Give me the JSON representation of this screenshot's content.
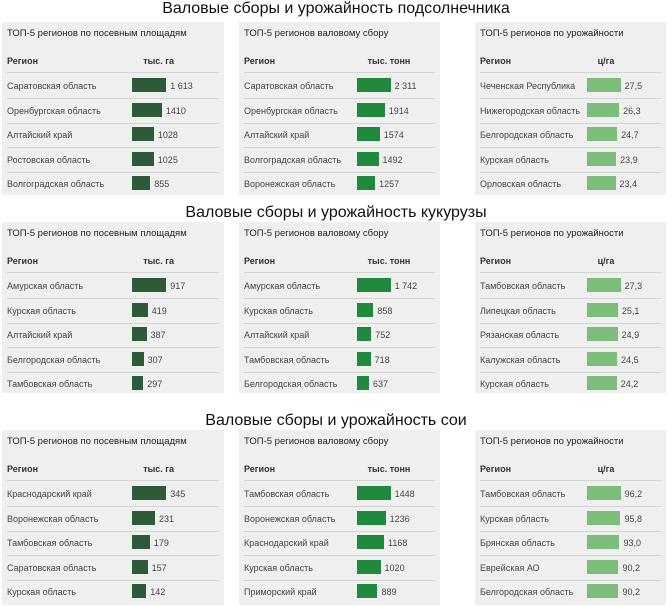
{
  "sections": [
    {
      "title": "Валовые сборы и урожайность подсолнечника",
      "tables": [
        {
          "title": "ТОП-5 регионов по посевным площадям",
          "header": [
            "Регион",
            "тыс. га"
          ],
          "rows": [
            {
              "region": "Саратовская область",
              "value": {
                "value": 1613,
                "label": "1 613"
              }
            },
            {
              "region": "Оренбургская область",
              "value": 1410
            },
            {
              "region": "Алтайский край",
              "value": 1028
            },
            {
              "region": "Ростовская область",
              "value": 1025
            },
            {
              "region": "Волгоградская область",
              "value": 855
            }
          ]
        },
        {
          "title": "ТОП-5 регионов валовому сбору",
          "header": [
            "Регион",
            "тыс. тонн"
          ],
          "rows": [
            {
              "region": "Саратовская область",
              "value": {
                "value": 2311,
                "label": "2 311"
              }
            },
            {
              "region": "Оренбургская область",
              "value": 1914
            },
            {
              "region": "Алтайский край",
              "value": 1574
            },
            {
              "region": "Волгоградская область",
              "value": 1492
            },
            {
              "region": "Воронежская область",
              "value": 1257
            }
          ]
        },
        {
          "title": "ТОП-5 регионов по урожайности",
          "header": [
            "Регион",
            "ц/га"
          ],
          "rows": [
            {
              "region": "Чеченская Республика",
              "value": {
                "value": 27.5,
                "label": "27,5"
              }
            },
            {
              "region": "Нижегородская область",
              "value": {
                "value": 26.3,
                "label": "26,3"
              }
            },
            {
              "region": "Белгородская область",
              "value": {
                "value": 24.7,
                "label": "24,7"
              }
            },
            {
              "region": "Курская область",
              "value": {
                "value": 23.9,
                "label": "23,9"
              }
            },
            {
              "region": "Орловская область",
              "value": {
                "value": 23.4,
                "label": "23,4"
              }
            }
          ]
        }
      ]
    },
    {
      "title": "Валовые сборы и урожайность кукурузы",
      "tables": [
        {
          "title": "ТОП-5 регионов по посевным площадям",
          "header": [
            "Регион",
            "тыс. га"
          ],
          "rows": [
            {
              "region": "Амурская область",
              "value": 917
            },
            {
              "region": "Курская область",
              "value": 419
            },
            {
              "region": "Алтайский край",
              "value": 387
            },
            {
              "region": "Белгородская область",
              "value": 307
            },
            {
              "region": "Тамбовская область",
              "value": 297
            }
          ]
        },
        {
          "title": "ТОП-5 регионов валовому сбору",
          "header": [
            "Регион",
            "тыс. тонн"
          ],
          "rows": [
            {
              "region": "Амурская область",
              "value": {
                "value": 1742,
                "label": "1 742"
              }
            },
            {
              "region": "Курская область",
              "value": 858
            },
            {
              "region": "Алтайский край",
              "value": 752
            },
            {
              "region": "Тамбовская область",
              "value": 718
            },
            {
              "region": "Белгородская область",
              "value": 637
            }
          ]
        },
        {
          "title": "ТОП-5 регионов по урожайности",
          "header": [
            "Регион",
            "ц/га"
          ],
          "rows": [
            {
              "region": "Тамбовская область",
              "value": {
                "value": 27.3,
                "label": "27,3"
              }
            },
            {
              "region": "Липецкая область",
              "value": {
                "value": 25.1,
                "label": "25,1"
              }
            },
            {
              "region": "Рязанская область",
              "value": {
                "value": 24.9,
                "label": "24,9"
              }
            },
            {
              "region": "Калужская область",
              "value": {
                "value": 24.5,
                "label": "24,5"
              }
            },
            {
              "region": "Курская область",
              "value": {
                "value": 24.2,
                "label": "24,2"
              }
            }
          ]
        }
      ]
    },
    {
      "title": "Валовые сборы и урожайность сои",
      "tables": [
        {
          "title": "ТОП-5 регионов по посевным площадям",
          "header": [
            "Регион",
            "тыс. га"
          ],
          "rows": [
            {
              "region": "Краснодарский край",
              "value": 345
            },
            {
              "region": "Воронежская область",
              "value": 231
            },
            {
              "region": "Тамбовская область",
              "value": 179
            },
            {
              "region": "Саратовская область",
              "value": 157
            },
            {
              "region": "Курская область",
              "value": 142
            }
          ]
        },
        {
          "title": "ТОП-5 регионов валовому сбору",
          "header": [
            "Регион",
            "тыс. тонн"
          ],
          "rows": [
            {
              "region": "Тамбовская область",
              "value": 1448
            },
            {
              "region": "Воронежская область",
              "value": 1236
            },
            {
              "region": "Краснодарский край",
              "value": 1168
            },
            {
              "region": "Курская область",
              "value": 1020
            },
            {
              "region": "Приморский край",
              "value": 889
            }
          ]
        },
        {
          "title": "ТОП-5 регионов по урожайности",
          "header": [
            "Регион",
            "ц/га"
          ],
          "rows": [
            {
              "region": "Тамбовская область",
              "value": {
                "value": 96.2,
                "label": "96,2"
              }
            },
            {
              "region": "Курская область",
              "value": {
                "value": 95.8,
                "label": "95,8"
              }
            },
            {
              "region": "Брянская область",
              "value": {
                "value": 93.0,
                "label": "93,0"
              }
            },
            {
              "region": "Еврейская АО",
              "value": {
                "value": 90.2,
                "label": "90,2"
              }
            },
            {
              "region": "Белгородская область",
              "value": {
                "value": 90.2,
                "label": "90,2"
              }
            }
          ]
        }
      ]
    }
  ]
}
